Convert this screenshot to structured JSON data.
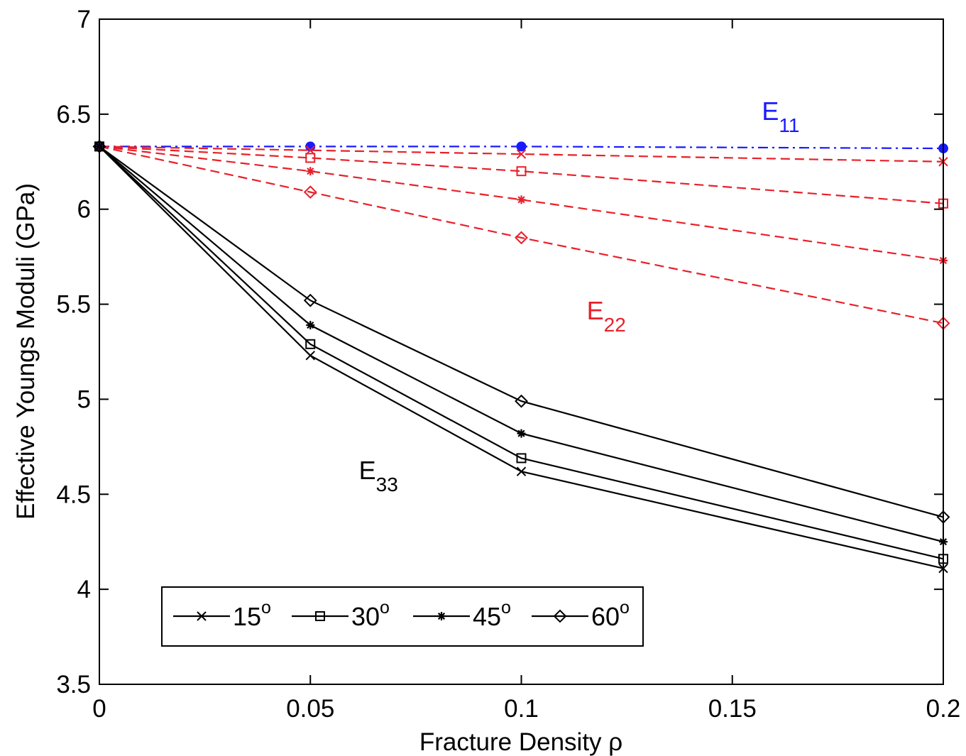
{
  "chart_data": {
    "type": "line",
    "xlabel": "Fracture Density ρ",
    "ylabel": "Effective Youngs Moduli (GPa)",
    "xlim": [
      0,
      0.2
    ],
    "ylim": [
      3.5,
      7
    ],
    "x_ticks": [
      {
        "value": 0,
        "label": "0"
      },
      {
        "value": 0.05,
        "label": "0.05"
      },
      {
        "value": 0.1,
        "label": "0.1"
      },
      {
        "value": 0.15,
        "label": "0.15"
      },
      {
        "value": 0.2,
        "label": "0.2"
      }
    ],
    "y_ticks": [
      {
        "value": 3.5,
        "label": "3.5"
      },
      {
        "value": 4,
        "label": "4"
      },
      {
        "value": 4.5,
        "label": "4.5"
      },
      {
        "value": 5,
        "label": "5"
      },
      {
        "value": 5.5,
        "label": "5.5"
      },
      {
        "value": 6,
        "label": "6"
      },
      {
        "value": 6.5,
        "label": "6.5"
      },
      {
        "value": 7,
        "label": "7"
      }
    ],
    "grid": false,
    "legend": {
      "placement": "bottom-left",
      "entries": [
        {
          "label": "15",
          "sup": "o",
          "marker": "x"
        },
        {
          "label": "30",
          "sup": "o",
          "marker": "square"
        },
        {
          "label": "45",
          "sup": "o",
          "marker": "star"
        },
        {
          "label": "60",
          "sup": "o",
          "marker": "diamond"
        }
      ]
    },
    "annotations": [
      {
        "base": "E",
        "sub": "11",
        "color": "#1a1aff",
        "x": 0.157,
        "y": 6.47
      },
      {
        "base": "E",
        "sub": "22",
        "color": "#e8202a",
        "x": 0.1155,
        "y": 5.42
      },
      {
        "base": "E",
        "sub": "33",
        "color": "#000000",
        "x": 0.0615,
        "y": 4.58
      }
    ],
    "x": [
      0,
      0.05,
      0.1,
      0.2
    ],
    "series": [
      {
        "group": "E11",
        "color": "#1a1aff",
        "dash": "dashdot",
        "marker": "dot",
        "values": [
          6.33,
          6.33,
          6.33,
          6.32
        ]
      },
      {
        "group": "E22",
        "color": "#e8202a",
        "dash": "dashed",
        "marker": "x",
        "values": [
          6.33,
          6.31,
          6.29,
          6.25
        ]
      },
      {
        "group": "E22",
        "color": "#e8202a",
        "dash": "dashed",
        "marker": "square",
        "values": [
          6.33,
          6.27,
          6.2,
          6.03
        ]
      },
      {
        "group": "E22",
        "color": "#e8202a",
        "dash": "dashed",
        "marker": "star",
        "values": [
          6.33,
          6.2,
          6.05,
          5.73
        ]
      },
      {
        "group": "E22",
        "color": "#e8202a",
        "dash": "dashed",
        "marker": "diamond",
        "values": [
          6.33,
          6.09,
          5.85,
          5.4
        ]
      },
      {
        "group": "E33",
        "color": "#000000",
        "dash": "solid",
        "marker": "x",
        "values": [
          6.33,
          5.23,
          4.62,
          4.11
        ]
      },
      {
        "group": "E33",
        "color": "#000000",
        "dash": "solid",
        "marker": "square",
        "values": [
          6.33,
          5.29,
          4.69,
          4.16
        ]
      },
      {
        "group": "E33",
        "color": "#000000",
        "dash": "solid",
        "marker": "star",
        "values": [
          6.33,
          5.39,
          4.82,
          4.25
        ]
      },
      {
        "group": "E33",
        "color": "#000000",
        "dash": "solid",
        "marker": "diamond",
        "values": [
          6.33,
          5.52,
          4.99,
          4.38
        ]
      }
    ]
  }
}
